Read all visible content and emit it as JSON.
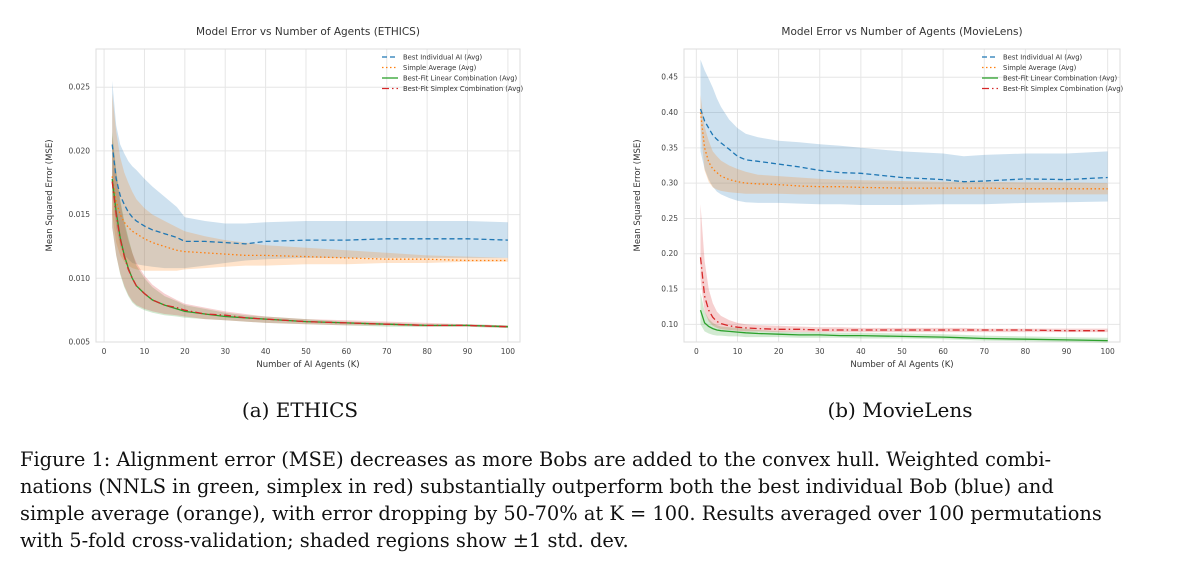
{
  "subcaptions": {
    "a": "(a) ETHICS",
    "b": "(b) MovieLens"
  },
  "caption": {
    "lines": [
      "Figure 1: Alignment error (MSE) decreases as more Bobs are added to the convex hull. Weighted combi-",
      "nations (NNLS in green, simplex in red) substantially outperform both the best individual Bob (blue) and",
      "simple average (orange), with error dropping by 50-70% at K = 100. Results averaged over 100 permutations",
      "with 5-fold cross-validation; shaded regions show ±1 std. dev."
    ]
  },
  "colors": {
    "best_individual": "#1f77b4",
    "simple_average": "#ff7f0e",
    "linear_combination": "#2ca02c",
    "simplex_combination": "#d62728",
    "grid": "#e6e6e6",
    "axis_text": "#444444"
  },
  "chart_data": [
    {
      "type": "line",
      "title": "Model Error vs Number of Agents (ETHICS)",
      "xlabel": "Number of AI Agents (K)",
      "ylabel": "Mean Squared Error (MSE)",
      "xlim": [
        -2,
        103
      ],
      "ylim": [
        0.005,
        0.028
      ],
      "xticks": [
        0,
        10,
        20,
        30,
        40,
        50,
        60,
        70,
        80,
        90,
        100
      ],
      "yticks": [
        0.005,
        0.01,
        0.015,
        0.02,
        0.025
      ],
      "ytick_labels": [
        "0.005",
        "0.010",
        "0.015",
        "0.020",
        "0.025"
      ],
      "legend_position": "top-right",
      "x": [
        2,
        3,
        4,
        5,
        6,
        7,
        8,
        10,
        12,
        15,
        18,
        20,
        25,
        30,
        35,
        40,
        50,
        60,
        70,
        80,
        90,
        100
      ],
      "series": [
        {
          "name": "Best Individual AI (Avg)",
          "style": "dashed",
          "mean": [
            0.0205,
            0.0178,
            0.0165,
            0.0158,
            0.0152,
            0.0148,
            0.0145,
            0.0141,
            0.0138,
            0.0135,
            0.0132,
            0.0129,
            0.0129,
            0.0128,
            0.0127,
            0.0129,
            0.013,
            0.013,
            0.0131,
            0.0131,
            0.0131,
            0.013
          ],
          "lower": [
            0.017,
            0.014,
            0.0125,
            0.0118,
            0.0115,
            0.0112,
            0.0111,
            0.011,
            0.0109,
            0.0108,
            0.0108,
            0.0108,
            0.011,
            0.0112,
            0.0114,
            0.0115,
            0.0116,
            0.0116,
            0.0116,
            0.0116,
            0.0116,
            0.0116
          ],
          "upper": [
            0.0255,
            0.022,
            0.0205,
            0.0198,
            0.0192,
            0.0188,
            0.0185,
            0.0178,
            0.0172,
            0.0164,
            0.0156,
            0.0148,
            0.0145,
            0.0143,
            0.0143,
            0.0144,
            0.0145,
            0.0145,
            0.0145,
            0.0145,
            0.0145,
            0.0144
          ]
        },
        {
          "name": "Simple Average (Avg)",
          "style": "dotted",
          "mean": [
            0.018,
            0.016,
            0.015,
            0.0144,
            0.014,
            0.0137,
            0.0135,
            0.0131,
            0.0128,
            0.0125,
            0.0122,
            0.0121,
            0.012,
            0.0119,
            0.0118,
            0.0118,
            0.0117,
            0.0116,
            0.0115,
            0.0115,
            0.0114,
            0.0114
          ],
          "lower": [
            0.015,
            0.0128,
            0.0118,
            0.0113,
            0.011,
            0.0108,
            0.0107,
            0.0106,
            0.0106,
            0.0106,
            0.0106,
            0.0107,
            0.0108,
            0.0109,
            0.011,
            0.011,
            0.0111,
            0.0111,
            0.0112,
            0.0112,
            0.0113,
            0.0113
          ],
          "upper": [
            0.0245,
            0.0215,
            0.0195,
            0.0183,
            0.0175,
            0.0168,
            0.0162,
            0.0155,
            0.015,
            0.0145,
            0.014,
            0.0137,
            0.0133,
            0.013,
            0.0128,
            0.0126,
            0.0124,
            0.0122,
            0.012,
            0.0118,
            0.0117,
            0.0116
          ]
        },
        {
          "name": "Best-Fit Linear Combination (Avg)",
          "style": "solid",
          "mean": [
            0.0178,
            0.0152,
            0.0132,
            0.0118,
            0.0108,
            0.01,
            0.0094,
            0.0088,
            0.0083,
            0.0079,
            0.0076,
            0.0074,
            0.0072,
            0.007,
            0.0069,
            0.0068,
            0.0066,
            0.0065,
            0.0064,
            0.0063,
            0.0063,
            0.0062
          ],
          "lower": [
            0.014,
            0.0118,
            0.0103,
            0.0093,
            0.0086,
            0.0081,
            0.0078,
            0.0075,
            0.0073,
            0.0071,
            0.007,
            0.0069,
            0.0068,
            0.0067,
            0.0066,
            0.0065,
            0.0064,
            0.0063,
            0.0062,
            0.0062,
            0.0062,
            0.0061
          ],
          "upper": [
            0.0215,
            0.0185,
            0.0162,
            0.0145,
            0.0132,
            0.012,
            0.011,
            0.01,
            0.0093,
            0.0086,
            0.0082,
            0.0079,
            0.0076,
            0.0073,
            0.0071,
            0.007,
            0.0068,
            0.0066,
            0.0065,
            0.0064,
            0.0064,
            0.0063
          ]
        },
        {
          "name": "Best-Fit Simplex Combination (Avg)",
          "style": "dashdot",
          "mean": [
            0.0176,
            0.015,
            0.0131,
            0.0117,
            0.0107,
            0.01,
            0.0094,
            0.0088,
            0.0083,
            0.0079,
            0.0077,
            0.0075,
            0.0072,
            0.0071,
            0.0069,
            0.0068,
            0.0066,
            0.0065,
            0.0064,
            0.0063,
            0.0063,
            0.0062
          ],
          "lower": [
            0.014,
            0.0118,
            0.0104,
            0.0094,
            0.0087,
            0.0082,
            0.0079,
            0.0076,
            0.0074,
            0.0072,
            0.0071,
            0.007,
            0.0068,
            0.0067,
            0.0066,
            0.0065,
            0.0064,
            0.0063,
            0.0063,
            0.0062,
            0.0062,
            0.0061
          ],
          "upper": [
            0.0212,
            0.0183,
            0.016,
            0.0143,
            0.013,
            0.012,
            0.0112,
            0.0102,
            0.0095,
            0.0088,
            0.0083,
            0.008,
            0.0077,
            0.0074,
            0.0072,
            0.007,
            0.0068,
            0.0067,
            0.0066,
            0.0065,
            0.0064,
            0.0063
          ]
        }
      ]
    },
    {
      "type": "line",
      "title": "Model Error vs Number of Agents (MovieLens)",
      "xlabel": "Number of AI Agents (K)",
      "ylabel": "Mean Squared Error (MSE)",
      "xlim": [
        -3,
        103
      ],
      "ylim": [
        0.075,
        0.49
      ],
      "xticks": [
        0,
        10,
        20,
        30,
        40,
        50,
        60,
        70,
        80,
        90,
        100
      ],
      "yticks": [
        0.1,
        0.15,
        0.2,
        0.25,
        0.3,
        0.35,
        0.4,
        0.45
      ],
      "ytick_labels": [
        "0.10",
        "0.15",
        "0.20",
        "0.25",
        "0.30",
        "0.35",
        "0.40",
        "0.45"
      ],
      "legend_position": "top-right",
      "x": [
        1,
        2,
        3,
        4,
        5,
        6,
        8,
        10,
        12,
        15,
        20,
        25,
        30,
        35,
        40,
        50,
        60,
        65,
        70,
        80,
        90,
        100
      ],
      "series": [
        {
          "name": "Best Individual AI (Avg)",
          "style": "dashed",
          "mean": [
            0.405,
            0.388,
            0.378,
            0.368,
            0.362,
            0.357,
            0.348,
            0.338,
            0.333,
            0.331,
            0.327,
            0.323,
            0.318,
            0.315,
            0.314,
            0.308,
            0.305,
            0.302,
            0.303,
            0.306,
            0.305,
            0.308
          ],
          "lower": [
            0.345,
            0.32,
            0.305,
            0.295,
            0.288,
            0.284,
            0.279,
            0.275,
            0.273,
            0.272,
            0.272,
            0.271,
            0.27,
            0.27,
            0.269,
            0.269,
            0.27,
            0.27,
            0.27,
            0.272,
            0.273,
            0.274
          ],
          "upper": [
            0.475,
            0.46,
            0.448,
            0.435,
            0.42,
            0.408,
            0.39,
            0.378,
            0.37,
            0.365,
            0.36,
            0.358,
            0.355,
            0.353,
            0.35,
            0.345,
            0.342,
            0.338,
            0.34,
            0.342,
            0.342,
            0.345
          ]
        },
        {
          "name": "Simple Average (Avg)",
          "style": "dotted",
          "mean": [
            0.4,
            0.35,
            0.33,
            0.32,
            0.315,
            0.31,
            0.305,
            0.302,
            0.3,
            0.299,
            0.298,
            0.296,
            0.295,
            0.295,
            0.294,
            0.293,
            0.293,
            0.293,
            0.293,
            0.292,
            0.292,
            0.292
          ],
          "lower": [
            0.38,
            0.318,
            0.302,
            0.294,
            0.291,
            0.289,
            0.287,
            0.286,
            0.285,
            0.285,
            0.285,
            0.284,
            0.284,
            0.284,
            0.284,
            0.284,
            0.284,
            0.284,
            0.284,
            0.284,
            0.284,
            0.284
          ],
          "upper": [
            0.425,
            0.38,
            0.36,
            0.345,
            0.338,
            0.332,
            0.325,
            0.32,
            0.316,
            0.312,
            0.31,
            0.308,
            0.306,
            0.305,
            0.304,
            0.303,
            0.302,
            0.302,
            0.302,
            0.301,
            0.301,
            0.3
          ]
        },
        {
          "name": "Best-Fit Linear Combination (Avg)",
          "style": "solid",
          "mean": [
            0.12,
            0.102,
            0.097,
            0.094,
            0.092,
            0.091,
            0.09,
            0.089,
            0.088,
            0.087,
            0.086,
            0.085,
            0.085,
            0.084,
            0.084,
            0.083,
            0.082,
            0.081,
            0.08,
            0.079,
            0.078,
            0.077
          ],
          "lower": [
            0.1,
            0.09,
            0.087,
            0.085,
            0.084,
            0.084,
            0.083,
            0.083,
            0.082,
            0.082,
            0.082,
            0.081,
            0.081,
            0.081,
            0.08,
            0.08,
            0.079,
            0.078,
            0.077,
            0.076,
            0.075,
            0.074
          ],
          "upper": [
            0.145,
            0.118,
            0.108,
            0.102,
            0.099,
            0.097,
            0.096,
            0.095,
            0.094,
            0.092,
            0.09,
            0.089,
            0.089,
            0.088,
            0.088,
            0.087,
            0.086,
            0.085,
            0.084,
            0.083,
            0.082,
            0.081
          ]
        },
        {
          "name": "Best-Fit Simplex Combination (Avg)",
          "style": "dashdot",
          "mean": [
            0.195,
            0.14,
            0.12,
            0.11,
            0.104,
            0.101,
            0.098,
            0.096,
            0.095,
            0.094,
            0.093,
            0.093,
            0.092,
            0.092,
            0.092,
            0.092,
            0.092,
            0.092,
            0.092,
            0.092,
            0.091,
            0.091
          ],
          "lower": [
            0.165,
            0.118,
            0.104,
            0.098,
            0.095,
            0.093,
            0.092,
            0.091,
            0.09,
            0.09,
            0.089,
            0.089,
            0.089,
            0.089,
            0.089,
            0.089,
            0.089,
            0.089,
            0.089,
            0.089,
            0.089,
            0.089
          ],
          "upper": [
            0.27,
            0.19,
            0.15,
            0.13,
            0.118,
            0.112,
            0.106,
            0.102,
            0.1,
            0.099,
            0.098,
            0.097,
            0.096,
            0.096,
            0.095,
            0.095,
            0.095,
            0.095,
            0.094,
            0.094,
            0.094,
            0.094
          ]
        }
      ]
    }
  ]
}
